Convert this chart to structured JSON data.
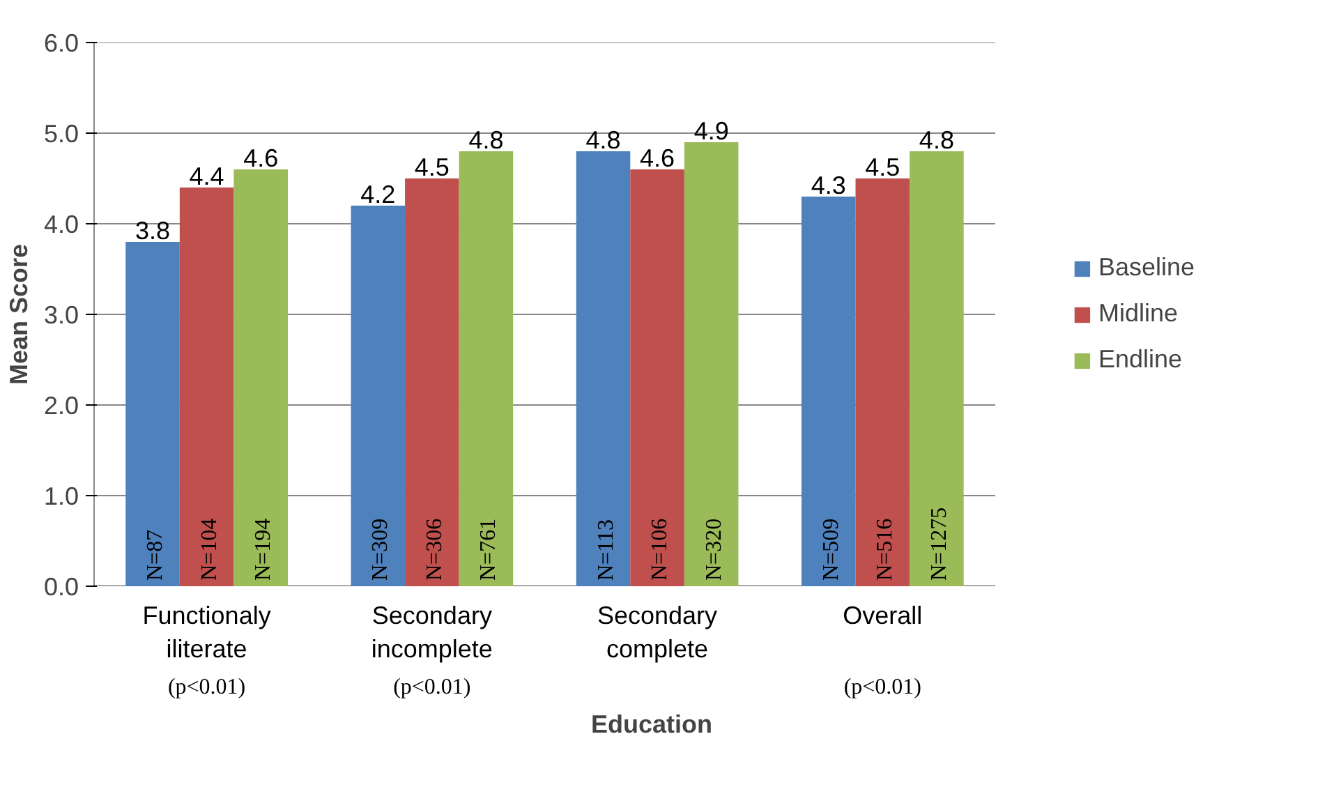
{
  "chart_data": {
    "type": "bar",
    "xlabel": "Education",
    "ylabel": "Mean Score",
    "categories": [
      "Functionaly iliterate",
      "Secondary incomplete",
      "Secondary complete",
      "Overall"
    ],
    "series": [
      {
        "name": "Baseline",
        "color": "#4f81bd",
        "values": [
          3.8,
          4.2,
          4.8,
          4.3
        ]
      },
      {
        "name": "Midline",
        "color": "#c0504d",
        "values": [
          4.4,
          4.5,
          4.6,
          4.5
        ]
      },
      {
        "name": "Endline",
        "color": "#9bbb59",
        "values": [
          4.6,
          4.8,
          4.9,
          4.8
        ]
      }
    ],
    "ylim": [
      0,
      6
    ],
    "yticks": [
      {
        "value": 0,
        "label": "0.0"
      },
      {
        "value": 1,
        "label": "1.0"
      },
      {
        "value": 2,
        "label": "2.0"
      },
      {
        "value": 3,
        "label": "3.0"
      },
      {
        "value": 4,
        "label": "4.0"
      },
      {
        "value": 5,
        "label": "5.0"
      },
      {
        "value": 6,
        "label": "6.0"
      }
    ],
    "data_labels": true,
    "grid": "y",
    "legend": "right",
    "annotations": [
      {
        "text": "N=87",
        "x": "Functionaly iliterate",
        "y": 0
      },
      {
        "text": "N=104",
        "x": "Functionaly iliterate",
        "y": 0
      },
      {
        "text": "N=194",
        "x": "Functionaly iliterate",
        "y": 0
      },
      {
        "text": "N=309",
        "x": "Secondary incomplete",
        "y": 0
      },
      {
        "text": "N=306",
        "x": "Secondary incomplete",
        "y": 0
      },
      {
        "text": "N=761",
        "x": "Secondary incomplete",
        "y": 0
      },
      {
        "text": "N=113",
        "x": "Secondary complete",
        "y": 0
      },
      {
        "text": "N=106",
        "x": "Secondary complete",
        "y": 0
      },
      {
        "text": "N=320",
        "x": "Secondary complete",
        "y": 0
      },
      {
        "text": "N=509",
        "x": "Overall",
        "y": 0
      },
      {
        "text": "N=516",
        "x": "Overall",
        "y": 0
      },
      {
        "text": "N=1275",
        "x": "Overall",
        "y": 0
      },
      "(p<0.01)",
      "(p<0.01)",
      "(p<0.01)"
    ]
  }
}
